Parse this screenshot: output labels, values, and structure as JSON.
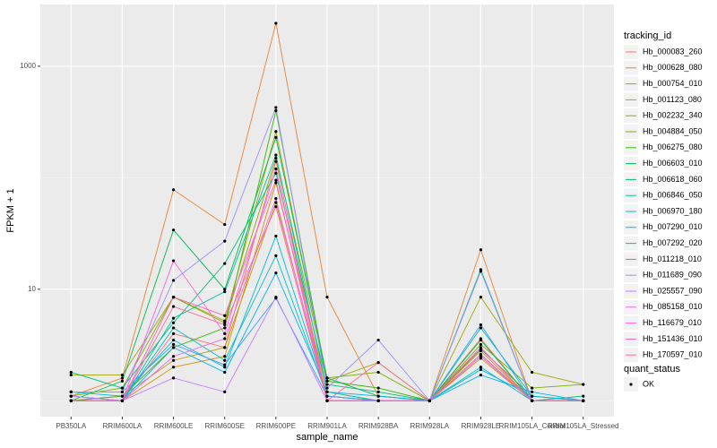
{
  "chart_data": {
    "type": "line",
    "x_label": "sample_name",
    "y_label": "FPKM + 1",
    "categories": [
      "PB350LA",
      "RRIM600LA",
      "RRIM600LE",
      "RRIM600SE",
      "RRIM600PE",
      "RRIM901LA",
      "RRIM928BA",
      "RRIM928LA",
      "RRIM928LE",
      "RRIM105LA_Control",
      "RRIM105LA_Stressed"
    ],
    "log_scale": true,
    "grid": true,
    "ylim": [
      0.72,
      3580
    ],
    "yticks": [
      10,
      1000
    ],
    "legend_title": "tracking_id",
    "legend_position": "right",
    "point_color": "#000000",
    "point_legend": {
      "title": "quant_status",
      "labels": [
        "OK"
      ]
    },
    "series": [
      {
        "name": "Hb_000083_260",
        "color": "#F8766D",
        "values": [
          1.0,
          1.0,
          4.0,
          3.0,
          140,
          1.0,
          1.0,
          1.0,
          3.6,
          1.0,
          1.0
        ]
      },
      {
        "name": "Hb_000628_080",
        "color": "#EA8331",
        "values": [
          1.1,
          1.6,
          78,
          38,
          2430,
          8.5,
          1.1,
          1.0,
          22.6,
          1.0,
          1.0
        ]
      },
      {
        "name": "Hb_000754_010",
        "color": "#D89000",
        "values": [
          1.0,
          1.0,
          2.0,
          2.5,
          90,
          1.2,
          1.0,
          1.0,
          2.4,
          1.0,
          1.0
        ]
      },
      {
        "name": "Hb_001123_080",
        "color": "#C09B00",
        "values": [
          1.0,
          1.1,
          2.3,
          3.0,
          60,
          1.1,
          1.0,
          1.0,
          2.8,
          1.0,
          1.0
        ]
      },
      {
        "name": "Hb_002232_340",
        "color": "#A3A500",
        "values": [
          1.7,
          1.7,
          8.5,
          5.2,
          260,
          1.5,
          2.2,
          1.0,
          8.5,
          1.8,
          1.4
        ]
      },
      {
        "name": "Hb_004884_050",
        "color": "#7CAE00",
        "values": [
          1.1,
          1.3,
          8.5,
          5.0,
          150,
          1.6,
          1.8,
          1.0,
          3.2,
          1.3,
          1.4
        ]
      },
      {
        "name": "Hb_006275_080",
        "color": "#39B600",
        "values": [
          1.0,
          1.1,
          3.0,
          4.5,
          400,
          1.5,
          1.3,
          1.0,
          2.9,
          1.1,
          1.0
        ]
      },
      {
        "name": "Hb_006603_010",
        "color": "#00BB4E",
        "values": [
          1.0,
          1.5,
          34,
          10,
          230,
          1.6,
          1.1,
          1.0,
          3.5,
          1.0,
          1.0
        ]
      },
      {
        "name": "Hb_006618_060",
        "color": "#00BF7D",
        "values": [
          1.8,
          1.3,
          5.0,
          17,
          110,
          1.4,
          1.2,
          1.0,
          15,
          1.0,
          1.1
        ]
      },
      {
        "name": "Hb_006846_050",
        "color": "#00C1A3",
        "values": [
          1.1,
          1.0,
          5.5,
          9.5,
          160,
          1.2,
          1.0,
          1.0,
          4.5,
          1.1,
          1.0
        ]
      },
      {
        "name": "Hb_006970_180",
        "color": "#00BFC4",
        "values": [
          1.0,
          1.0,
          4.5,
          2.3,
          20,
          1.1,
          1.0,
          1.0,
          2.0,
          1.0,
          1.0
        ]
      },
      {
        "name": "Hb_007290_010",
        "color": "#00BAE0",
        "values": [
          1.2,
          1.1,
          3.5,
          2.0,
          30,
          1.1,
          1.0,
          1.0,
          1.9,
          1.1,
          1.0
        ]
      },
      {
        "name": "Hb_007292_020",
        "color": "#00B0F6",
        "values": [
          1.1,
          1.0,
          3.0,
          1.8,
          14,
          1.2,
          1.1,
          1.0,
          1.7,
          1.2,
          1.0
        ]
      },
      {
        "name": "Hb_011218_010",
        "color": "#35A2FF",
        "values": [
          1.2,
          1.2,
          3.2,
          2.1,
          8.3,
          1.1,
          1.0,
          1.0,
          4.8,
          1.0,
          1.0
        ]
      },
      {
        "name": "Hb_011689_090",
        "color": "#9590FF",
        "values": [
          1.2,
          1.2,
          12,
          27,
          427,
          1.3,
          3.5,
          1.0,
          14.5,
          1.0,
          1.0
        ]
      },
      {
        "name": "Hb_025557_090",
        "color": "#C77CFF",
        "values": [
          1.1,
          1.0,
          1.6,
          1.2,
          8.5,
          1.0,
          1.0,
          1.0,
          2.5,
          1.0,
          1.0
        ]
      },
      {
        "name": "Hb_085158_010",
        "color": "#E76BF3",
        "values": [
          1.0,
          1.0,
          2.5,
          3.6,
          65,
          1.0,
          1.0,
          1.0,
          3.0,
          1.0,
          1.0
        ]
      },
      {
        "name": "Hb_116679_010",
        "color": "#FA62DB",
        "values": [
          1.0,
          1.0,
          18,
          4.0,
          120,
          1.0,
          1.0,
          1.0,
          2.6,
          1.0,
          1.0
        ]
      },
      {
        "name": "Hb_151436_010",
        "color": "#FF62BC",
        "values": [
          1.0,
          1.0,
          8.5,
          5.8,
          95,
          1.0,
          1.0,
          1.0,
          3.0,
          1.0,
          1.0
        ]
      },
      {
        "name": "Hb_170597_010",
        "color": "#FF6C91",
        "values": [
          1.0,
          1.0,
          7.0,
          4.8,
          55,
          1.0,
          2.2,
          1.0,
          2.6,
          1.0,
          1.0
        ]
      }
    ]
  }
}
